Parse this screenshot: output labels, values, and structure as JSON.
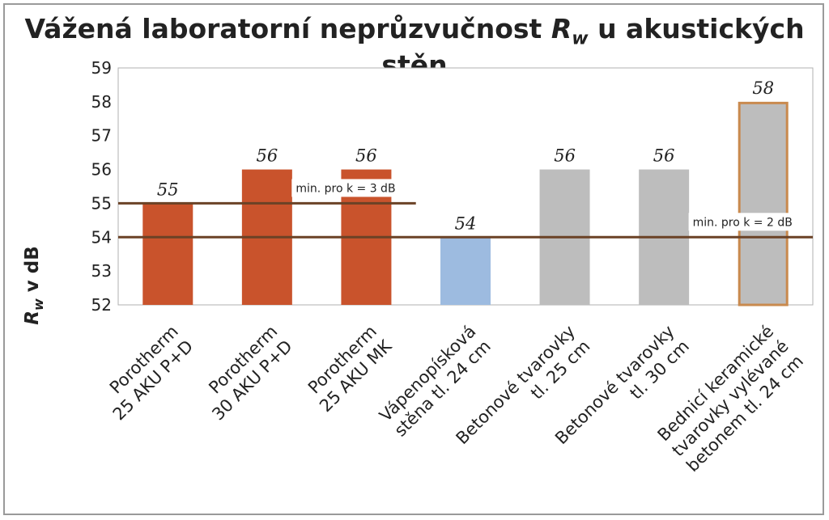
{
  "chart_data": {
    "type": "bar",
    "title": {
      "prefix": "Vážená laboratorní neprůzvučnost ",
      "symbol": "R",
      "subscript": "w",
      "suffix": " u akustických stěn"
    },
    "ylabel": {
      "symbol": "R",
      "subscript": "w",
      "rest": " v dB"
    },
    "ylim": [
      52,
      59
    ],
    "yticks": [
      52,
      53,
      54,
      55,
      56,
      57,
      58,
      59
    ],
    "grid": false,
    "categories": [
      [
        "Porotherm",
        "25 AKU P+D"
      ],
      [
        "Porotherm",
        "30 AKU P+D"
      ],
      [
        "Porotherm",
        "25 AKU MK"
      ],
      [
        "Vápenopísková",
        "stěna tl. 24 cm"
      ],
      [
        "Betonové tvarovky",
        "tl. 25 cm"
      ],
      [
        "Betonové tvarovky",
        "tl. 30 cm"
      ],
      [
        "Bednicí keramické",
        "tvarovky vylévané",
        "betonem tl. 24 cm"
      ]
    ],
    "values": [
      55,
      56,
      56,
      54,
      56,
      56,
      58
    ],
    "value_labels": [
      "55",
      "56",
      "56",
      "54",
      "56",
      "56",
      "58"
    ],
    "colors": [
      "#c9532c",
      "#c9532c",
      "#c9532c",
      "#9dbbe0",
      "#bdbdbd",
      "#bdbdbd",
      "#bdbdbd"
    ],
    "edge_colors": [
      "#c9532c",
      "#c9532c",
      "#c9532c",
      "#9dbbe0",
      "#bdbdbd",
      "#bdbdbd",
      "#c98a4e"
    ],
    "thresholds": [
      {
        "value": 55,
        "label": "min. pro k = 3 dB",
        "color": "#6b4226",
        "end_category": 3
      },
      {
        "value": 54,
        "label": "min. pro k = 2 dB",
        "color": "#6b4226",
        "end_category": 7
      }
    ]
  }
}
